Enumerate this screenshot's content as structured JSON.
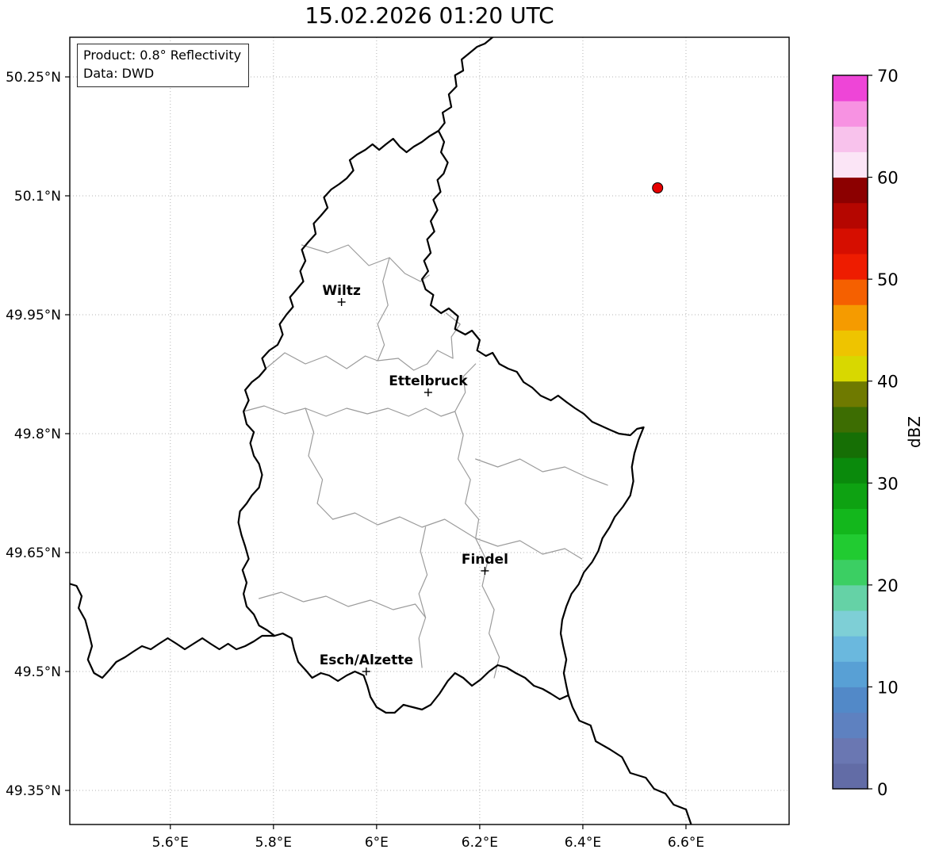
{
  "title": "15.02.2026 01:20 UTC",
  "info_box": {
    "product": "Product: 0.8° Reflectivity",
    "source": "Data: DWD"
  },
  "map": {
    "extent": {
      "lon_min": 5.405,
      "lon_max": 6.8,
      "lat_min": 49.307,
      "lat_max": 50.3
    },
    "lon_ticks": [
      {
        "value": 5.6,
        "label": "5.6°E"
      },
      {
        "value": 5.8,
        "label": "5.8°E"
      },
      {
        "value": 6.0,
        "label": "6°E"
      },
      {
        "value": 6.2,
        "label": "6.2°E"
      },
      {
        "value": 6.4,
        "label": "6.4°E"
      },
      {
        "value": 6.6,
        "label": "6.6°E"
      }
    ],
    "lat_ticks": [
      {
        "value": 50.25,
        "label": "50.25°N"
      },
      {
        "value": 50.1,
        "label": "50.1°N"
      },
      {
        "value": 49.95,
        "label": "49.95°N"
      },
      {
        "value": 49.8,
        "label": "49.8°N"
      },
      {
        "value": 49.65,
        "label": "49.65°N"
      },
      {
        "value": 49.5,
        "label": "49.5°N"
      },
      {
        "value": 49.35,
        "label": "49.35°N"
      }
    ],
    "cities": [
      {
        "name": "Wiltz",
        "lon": 5.932,
        "lat": 49.966
      },
      {
        "name": "Ettelbruck",
        "lon": 6.1,
        "lat": 49.852
      },
      {
        "name": "Findel",
        "lon": 6.21,
        "lat": 49.627
      },
      {
        "name": "Esch/Alzette",
        "lon": 5.98,
        "lat": 49.5
      }
    ],
    "radar_marker": {
      "lon": 6.545,
      "lat": 50.11,
      "color": "#e60000"
    }
  },
  "colorbar": {
    "unit": "dBZ",
    "min": 0,
    "max": 70,
    "tick_values": [
      0,
      10,
      20,
      30,
      40,
      50,
      60,
      70
    ],
    "tick_labels": [
      "0",
      "10",
      "20",
      "30",
      "40",
      "50",
      "60",
      "70"
    ],
    "colors_bottom_to_top": [
      "#626ca6",
      "#6a77b2",
      "#5e81c0",
      "#5289c8",
      "#58a0d5",
      "#6ab8de",
      "#7ecfd6",
      "#65d2a6",
      "#3bcf63",
      "#21cb31",
      "#13b71c",
      "#0ea212",
      "#0a8a0c",
      "#166f05",
      "#3d6d02",
      "#6f7a00",
      "#d8d800",
      "#eec400",
      "#f59b00",
      "#f56000",
      "#ee1c00",
      "#d60e00",
      "#b50600",
      "#8c0000",
      "#fbe5f6",
      "#f8c2ec",
      "#f792e2",
      "#ee45d7"
    ]
  }
}
